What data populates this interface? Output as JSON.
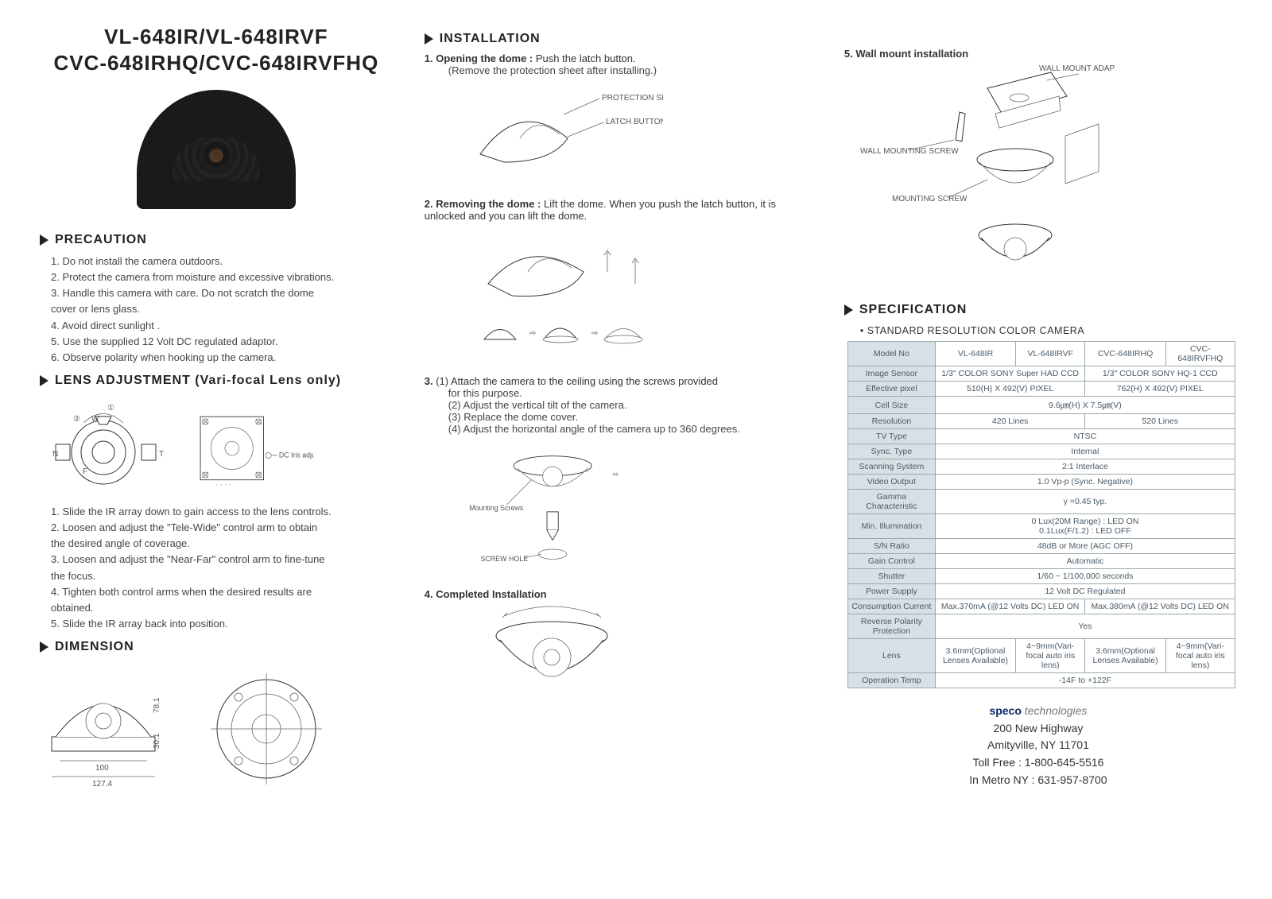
{
  "title_line1": "VL-648IR/VL-648IRVF",
  "title_line2": "CVC-648IRHQ/CVC-648IRVFHQ",
  "sections": {
    "precaution": "PRECAUTION",
    "lens": "LENS ADJUSTMENT (Vari-focal Lens only)",
    "dimension": "DIMENSION",
    "installation": "INSTALLATION",
    "specification": "SPECIFICATION"
  },
  "precaution_items": [
    "1. Do not install the camera outdoors.",
    "2. Protect the camera from moisture and excessive vibrations.",
    "3. Handle this camera with care. Do not scratch the dome",
    "    cover or lens glass.",
    "4. Avoid direct sunlight .",
    "5. Use the supplied 12 Volt DC regulated adaptor.",
    "6. Observe polarity when hooking up the camera."
  ],
  "lens_labels": {
    "one": "①",
    "two": "②",
    "w": "W",
    "n": "N",
    "f": "F",
    "t": "T",
    "dc": "DC Iris adjustment"
  },
  "lens_items": [
    "1. Slide the IR array down to gain access to the lens controls.",
    "2. Loosen and adjust the \"Tele-Wide\" control arm to obtain",
    "    the desired angle of coverage.",
    "3. Loosen and adjust the \"Near-Far\" control arm to fine-tune",
    "    the focus.",
    "4. Tighten both control arms when the desired results are",
    "    obtained.",
    "5. Slide the IR array back into position."
  ],
  "dim": {
    "w_inner": "100",
    "w_outer": "127.4",
    "h_up": "78.1",
    "h_low": "30.1"
  },
  "install": {
    "s1_lead": "1. Opening the dome : ",
    "s1_body": "Push the latch button.",
    "s1_sub": "(Remove the protection sheet after installing.)",
    "s1_lbl_a": "PROTECTION SHEET",
    "s1_lbl_b": "LATCH BUTTON",
    "s2_lead": "2. Removing the dome : ",
    "s2_body": "Lift the dome.  When you  push the latch button, it is unlocked and you can lift the dome.",
    "s3_lead": "3.",
    "s3_1": "(1) Attach the camera to the ceiling using the screws provided",
    "s3_1b": "      for this purpose.",
    "s3_2": "(2) Adjust the vertical tilt of the camera.",
    "s3_3": "(3) Replace the dome cover.",
    "s3_4": "(4) Adjust the horizontal angle of the camera up to 360 degrees.",
    "s3_lbl_a": "Mounting Screws",
    "s3_lbl_b": "SCREW HOLE",
    "s4_head": "4. Completed Installation",
    "s5_head": "5. Wall mount installation",
    "s5_lbl_a": "WALL MOUNT ADAPTOR",
    "s5_lbl_b": "WALL MOUNTING SCREW",
    "s5_lbl_c": "MOUNTING SCREW"
  },
  "spec_subtitle": "• STANDARD  RESOLUTION COLOR  CAMERA",
  "spec_rows": [
    {
      "h": "Model No",
      "c": [
        "VL-648IR",
        "VL-648IRVF",
        "CVC-648IRHQ",
        "CVC-648IRVFHQ"
      ]
    },
    {
      "h": "Image Sensor",
      "c2": [
        "1/3\" COLOR SONY Super HAD CCD",
        "1/3\" COLOR SONY HQ-1 CCD"
      ]
    },
    {
      "h": "Effective pixel",
      "c2": [
        "510(H) X 492(V) PIXEL",
        "762(H) X 492(V) PIXEL"
      ]
    },
    {
      "h": "Cell Size",
      "full": "9.6㎛(H) X 7.5㎛(V)"
    },
    {
      "h": "Resolution",
      "c2": [
        "420 Lines",
        "520 Lines"
      ]
    },
    {
      "h": "TV Type",
      "full": "NTSC"
    },
    {
      "h": "Sync. Type",
      "full": "Internal"
    },
    {
      "h": "Scanning System",
      "full": "2:1 Interlace"
    },
    {
      "h": "Video Output",
      "full": "1.0 Vp-p (Sync. Negative)"
    },
    {
      "h": "Gamma Characteristic",
      "full": "γ =0.45 typ."
    },
    {
      "h": "Min. Illumination",
      "full": "0 Lux(20M Range) : LED ON\n0.1Lux(F/1.2) : LED OFF"
    },
    {
      "h": "S/N Ratio",
      "full": "48dB or More (AGC OFF)"
    },
    {
      "h": "Gain Control",
      "full": "Automatic"
    },
    {
      "h": "Shutter",
      "full": "1/60 ~ 1/100,000 seconds"
    },
    {
      "h": "Power Supply",
      "full": "12 Volt DC Regulated"
    },
    {
      "h": "Consumption Current",
      "c2": [
        "Max.370mA (@12 Volts DC) LED ON",
        "Max.380mA (@12 Volts DC) LED ON"
      ]
    },
    {
      "h": "Reverse Polarity Protection",
      "full": "Yes"
    },
    {
      "h": "Lens",
      "c": [
        "3.6mm(Optional Lenses Available)",
        "4~9mm(Vari-focal auto iris lens)",
        "3.6mm(Optional Lenses Available)",
        "4~9mm(Vari-focal auto iris lens)"
      ]
    },
    {
      "h": "Operation Temp",
      "full": "-14F to +122F"
    }
  ],
  "footer": {
    "brand_a": "speco",
    "brand_b": "technologies",
    "addr1": "200 New Highway",
    "addr2": "Amityville, NY  11701",
    "tel1": "Toll Free : 1-800-645-5516",
    "tel2": "In Metro NY : 631-957-8700"
  },
  "colors": {
    "text": "#333333",
    "muted": "#4a5a66",
    "th_bg": "#d9e0e5",
    "border": "#99aabb",
    "brand": "#0a2a6b",
    "triangle": "#222222",
    "bg": "#ffffff"
  }
}
